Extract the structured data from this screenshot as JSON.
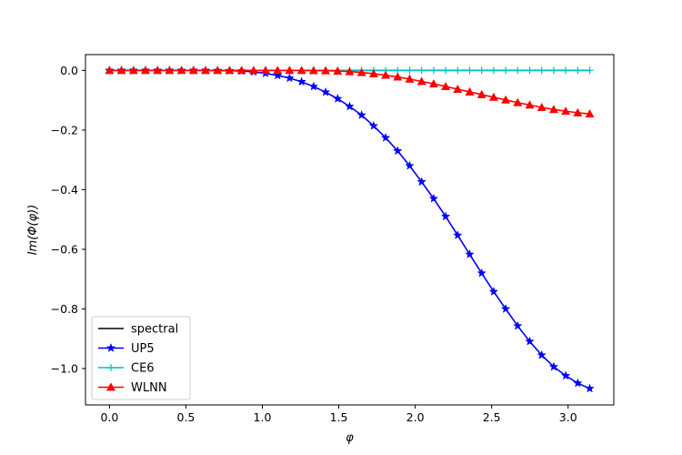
{
  "chart_data": {
    "type": "line",
    "xlabel": "φ",
    "ylabel": "Im(Φ(φ))",
    "xlim": [
      -0.157,
      3.299
    ],
    "ylim": [
      -1.122,
      0.053
    ],
    "xticks": [
      0.0,
      0.5,
      1.0,
      1.5,
      2.0,
      2.5,
      3.0
    ],
    "xtick_labels": [
      "0.0",
      "0.5",
      "1.0",
      "1.5",
      "2.0",
      "2.5",
      "3.0"
    ],
    "yticks": [
      0.0,
      -0.2,
      -0.4,
      -0.6,
      -0.8,
      -1.0
    ],
    "ytick_labels": [
      "0.0",
      "−0.2",
      "−0.4",
      "−0.6",
      "−0.8",
      "−1.0"
    ],
    "grid": false,
    "legend_position": "lower-left",
    "x": [
      0.0,
      0.0785,
      0.157,
      0.2356,
      0.3142,
      0.3927,
      0.4712,
      0.5498,
      0.6283,
      0.7069,
      0.7854,
      0.8639,
      0.9425,
      1.021,
      1.0996,
      1.1781,
      1.2566,
      1.3352,
      1.4137,
      1.4923,
      1.5708,
      1.6493,
      1.7279,
      1.8064,
      1.885,
      1.9635,
      2.042,
      2.1206,
      2.1991,
      2.2777,
      2.3562,
      2.4347,
      2.5133,
      2.5918,
      2.6704,
      2.7489,
      2.8274,
      2.906,
      2.9845,
      3.0631,
      3.1416
    ],
    "series": [
      {
        "name": "spectral",
        "color": "#000000",
        "marker": "none",
        "values": [
          0,
          0,
          0,
          0,
          0,
          0,
          0,
          0,
          0,
          0,
          0,
          0,
          0,
          0,
          0,
          0,
          0,
          0,
          0,
          0,
          0,
          0,
          0,
          0,
          0,
          0,
          0,
          0,
          0,
          0,
          0,
          0,
          0,
          0,
          0,
          0,
          0,
          0,
          0,
          0,
          0
        ]
      },
      {
        "name": "UP5",
        "color": "#0000ff",
        "marker": "star",
        "values": [
          0,
          0,
          0,
          0,
          0,
          0,
          0,
          0,
          0,
          -0.0005,
          -0.001,
          -0.002,
          -0.005,
          -0.01,
          -0.017,
          -0.026,
          -0.038,
          -0.054,
          -0.073,
          -0.095,
          -0.121,
          -0.15,
          -0.186,
          -0.226,
          -0.27,
          -0.32,
          -0.374,
          -0.43,
          -0.49,
          -0.553,
          -0.617,
          -0.68,
          -0.742,
          -0.8,
          -0.857,
          -0.909,
          -0.955,
          -0.994,
          -1.024,
          -1.049,
          -1.067
        ]
      },
      {
        "name": "CE6",
        "color": "#00bfbf",
        "marker": "plus",
        "values": [
          0,
          0,
          0,
          0,
          0,
          0,
          0,
          0,
          0,
          0,
          0,
          0,
          0,
          0,
          0,
          0,
          0,
          0,
          0,
          0,
          0,
          0,
          0,
          0,
          0,
          0,
          0,
          0,
          0,
          0,
          0,
          0,
          0,
          0,
          0,
          0,
          0,
          0,
          0,
          0,
          0
        ]
      },
      {
        "name": "WLNN",
        "color": "#ff0000",
        "marker": "triangle",
        "values": [
          0,
          0,
          0,
          0,
          0,
          0,
          0,
          0,
          0,
          0,
          0,
          0,
          0,
          0,
          0,
          0,
          0,
          -0.0005,
          -0.001,
          -0.002,
          -0.004,
          -0.007,
          -0.011,
          -0.016,
          -0.022,
          -0.029,
          -0.037,
          -0.045,
          -0.054,
          -0.063,
          -0.072,
          -0.081,
          -0.09,
          -0.099,
          -0.108,
          -0.116,
          -0.124,
          -0.131,
          -0.137,
          -0.142,
          -0.146
        ]
      }
    ]
  }
}
